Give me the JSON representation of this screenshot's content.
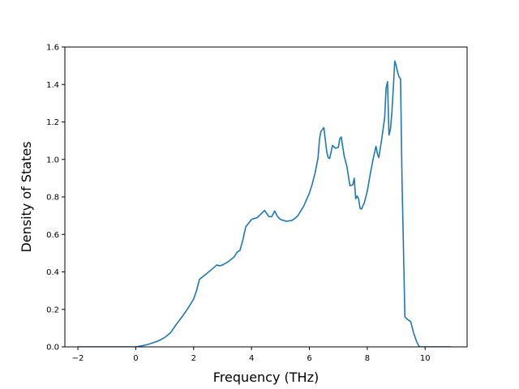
{
  "chart_data": {
    "type": "line",
    "title": "",
    "xlabel": "Frequency (THz)",
    "ylabel": "Density of States",
    "xlim": [
      -2.45,
      11.45
    ],
    "ylim": [
      0.0,
      1.6
    ],
    "xticks": [
      -2,
      0,
      2,
      4,
      6,
      8,
      10
    ],
    "yticks": [
      0.0,
      0.2,
      0.4,
      0.6,
      0.8,
      1.0,
      1.2,
      1.4,
      1.6
    ],
    "xtick_labels": [
      "−2",
      "0",
      "2",
      "4",
      "6",
      "8",
      "10"
    ],
    "ytick_labels": [
      "0.0",
      "0.2",
      "0.4",
      "0.6",
      "0.8",
      "1.0",
      "1.2",
      "1.4",
      "1.6"
    ],
    "grid": false,
    "legend": "none",
    "series": [
      {
        "name": "",
        "color": "#1f77b4",
        "x": [
          -2.0,
          -1.0,
          0.0,
          0.2,
          0.4,
          0.6,
          0.8,
          1.0,
          1.2,
          1.4,
          1.6,
          1.8,
          2.0,
          2.1,
          2.2,
          2.4,
          2.6,
          2.8,
          2.9,
          3.0,
          3.2,
          3.4,
          3.5,
          3.6,
          3.7,
          3.8,
          4.0,
          4.2,
          4.3,
          4.45,
          4.6,
          4.7,
          4.8,
          4.9,
          5.0,
          5.2,
          5.4,
          5.5,
          5.6,
          5.8,
          6.0,
          6.1,
          6.2,
          6.3,
          6.35,
          6.4,
          6.5,
          6.6,
          6.65,
          6.7,
          6.8,
          6.9,
          7.0,
          7.05,
          7.1,
          7.2,
          7.3,
          7.4,
          7.5,
          7.55,
          7.6,
          7.65,
          7.7,
          7.75,
          7.8,
          7.9,
          8.0,
          8.1,
          8.2,
          8.3,
          8.35,
          8.4,
          8.5,
          8.6,
          8.65,
          8.7,
          8.75,
          8.8,
          8.85,
          8.9,
          8.95,
          9.0,
          9.05,
          9.1,
          9.15,
          9.2,
          9.3,
          9.4,
          9.5,
          9.6,
          9.7,
          9.8,
          9.9,
          10.0,
          10.9
        ],
        "y": [
          0.0,
          0.0,
          0.0,
          0.005,
          0.012,
          0.022,
          0.033,
          0.05,
          0.075,
          0.12,
          0.16,
          0.205,
          0.255,
          0.3,
          0.36,
          0.385,
          0.41,
          0.437,
          0.432,
          0.437,
          0.455,
          0.48,
          0.505,
          0.515,
          0.57,
          0.64,
          0.68,
          0.69,
          0.705,
          0.728,
          0.695,
          0.695,
          0.725,
          0.695,
          0.68,
          0.67,
          0.675,
          0.685,
          0.7,
          0.75,
          0.82,
          0.87,
          0.93,
          1.01,
          1.11,
          1.15,
          1.17,
          1.04,
          1.01,
          1.005,
          1.075,
          1.06,
          1.065,
          1.11,
          1.12,
          1.02,
          0.96,
          0.86,
          0.865,
          0.9,
          0.79,
          0.805,
          0.79,
          0.74,
          0.735,
          0.77,
          0.83,
          0.92,
          1.0,
          1.07,
          1.03,
          1.01,
          1.11,
          1.22,
          1.38,
          1.415,
          1.13,
          1.16,
          1.25,
          1.38,
          1.525,
          1.5,
          1.465,
          1.44,
          1.43,
          0.9,
          0.16,
          0.145,
          0.135,
          0.075,
          0.03,
          0.0,
          0.0,
          0.0,
          0.0
        ]
      }
    ]
  }
}
